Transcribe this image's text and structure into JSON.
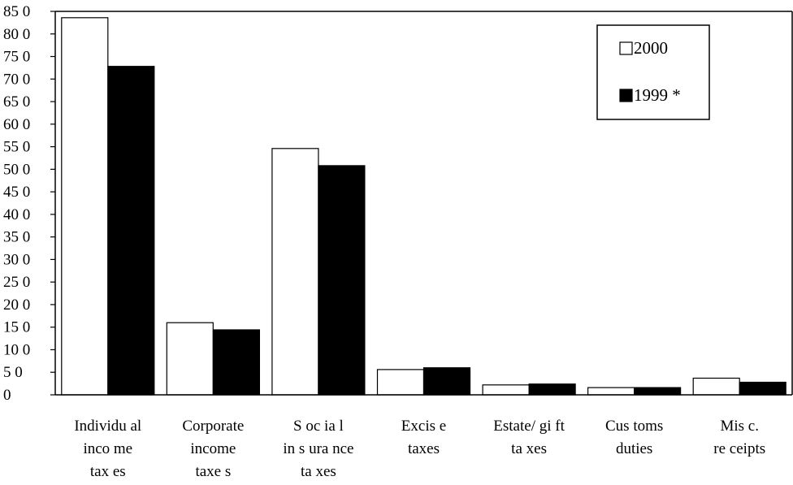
{
  "chart_data": {
    "type": "bar",
    "categories": [
      [
        "Individu al",
        "inco me",
        "tax es"
      ],
      [
        "Corporate",
        "income",
        "taxe s"
      ],
      [
        "S oc ia l",
        "in s ura nce",
        "ta xes"
      ],
      [
        "Excis e",
        "taxes"
      ],
      [
        "Estate/ gi ft",
        "ta xes"
      ],
      [
        "Cus toms",
        "duties"
      ],
      [
        "Mis c.",
        "re ceipts"
      ]
    ],
    "series": [
      {
        "name": "2000",
        "values": [
          836,
          160,
          546,
          56,
          22,
          16,
          37
        ],
        "color": "#ffffff"
      },
      {
        "name": "1999 *",
        "values": [
          728,
          144,
          508,
          60,
          24,
          16,
          28
        ],
        "color": "#000000"
      }
    ],
    "ylim": [
      0,
      850
    ],
    "yticks": [
      0,
      50,
      100,
      150,
      200,
      250,
      300,
      350,
      400,
      450,
      500,
      550,
      600,
      650,
      700,
      750,
      800,
      850
    ],
    "ytick_labels": [
      "0",
      "5 0",
      "10 0",
      "15 0",
      "20 0",
      "25 0",
      "30 0",
      "35 0",
      "40 0",
      "45 0",
      "50 0",
      "55 0",
      "60 0",
      "65 0",
      "70 0",
      "75 0",
      "80 0",
      "85 0"
    ],
    "legend_position": "top-right",
    "grid": false,
    "title": "",
    "xlabel": "",
    "ylabel": ""
  }
}
